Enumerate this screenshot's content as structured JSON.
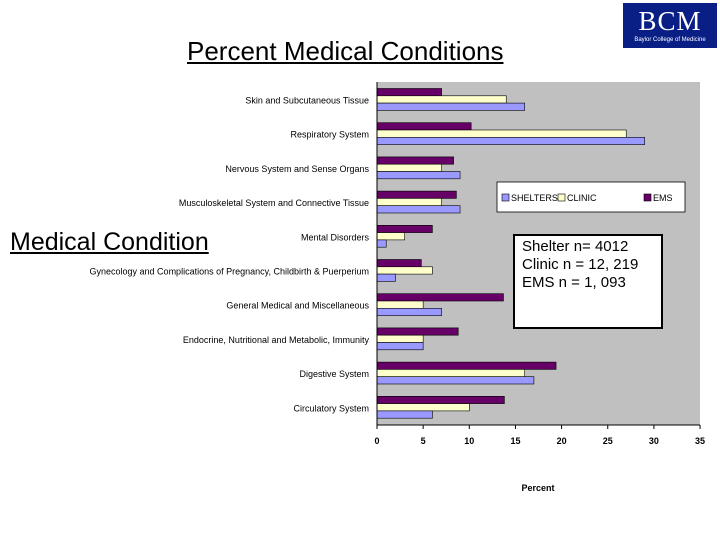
{
  "slide": {
    "title": "Percent Medical Conditions",
    "logo_text": "BCM",
    "logo_subtext": "Baylor College of Medicine",
    "side_heading": "Medical Condition",
    "sample_sizes": [
      "Shelter n= 4012",
      "Clinic n = 12, 219",
      "EMS n = 1, 093"
    ]
  },
  "colors": {
    "logo_bg": "#0a1f86",
    "plot_bg": "#c0c0c0",
    "shelters": "#9999ff",
    "clinic": "#ffffcc",
    "ems": "#660066"
  },
  "chart_data": {
    "type": "bar",
    "orientation": "horizontal",
    "categories": [
      "Skin and Subcutaneous Tissue",
      "Respiratory System",
      "Nervous System and Sense Organs",
      "Musculoskeletal System and Connective Tissue",
      "Mental Disorders",
      "Gynecology and Complications of  Pregnancy, Childbirth & Puerperium",
      "General Medical and Miscellaneous",
      "Endocrine, Nutritional and Metabolic, Immunity",
      "Digestive System",
      "Circulatory System"
    ],
    "series": [
      {
        "name": "EMS",
        "color": "#660066",
        "values": [
          7,
          10.2,
          8.3,
          8.6,
          6,
          4.8,
          13.7,
          8.8,
          19.4,
          13.8
        ]
      },
      {
        "name": "CLINIC",
        "color": "#ffffcc",
        "values": [
          14,
          27,
          7,
          7,
          3,
          6,
          5,
          5,
          16,
          10
        ]
      },
      {
        "name": "SHELTERS",
        "color": "#9999ff",
        "values": [
          16,
          29,
          9,
          9,
          1,
          2,
          7,
          5,
          17,
          6
        ]
      }
    ],
    "legend_order": [
      "SHELTERS",
      "CLINIC",
      "EMS"
    ],
    "xlabel": "Percent",
    "xlim": [
      0,
      35
    ],
    "xticks": [
      0,
      5,
      10,
      15,
      20,
      25,
      30,
      35
    ],
    "grid": false,
    "legend_position": "top-right"
  }
}
